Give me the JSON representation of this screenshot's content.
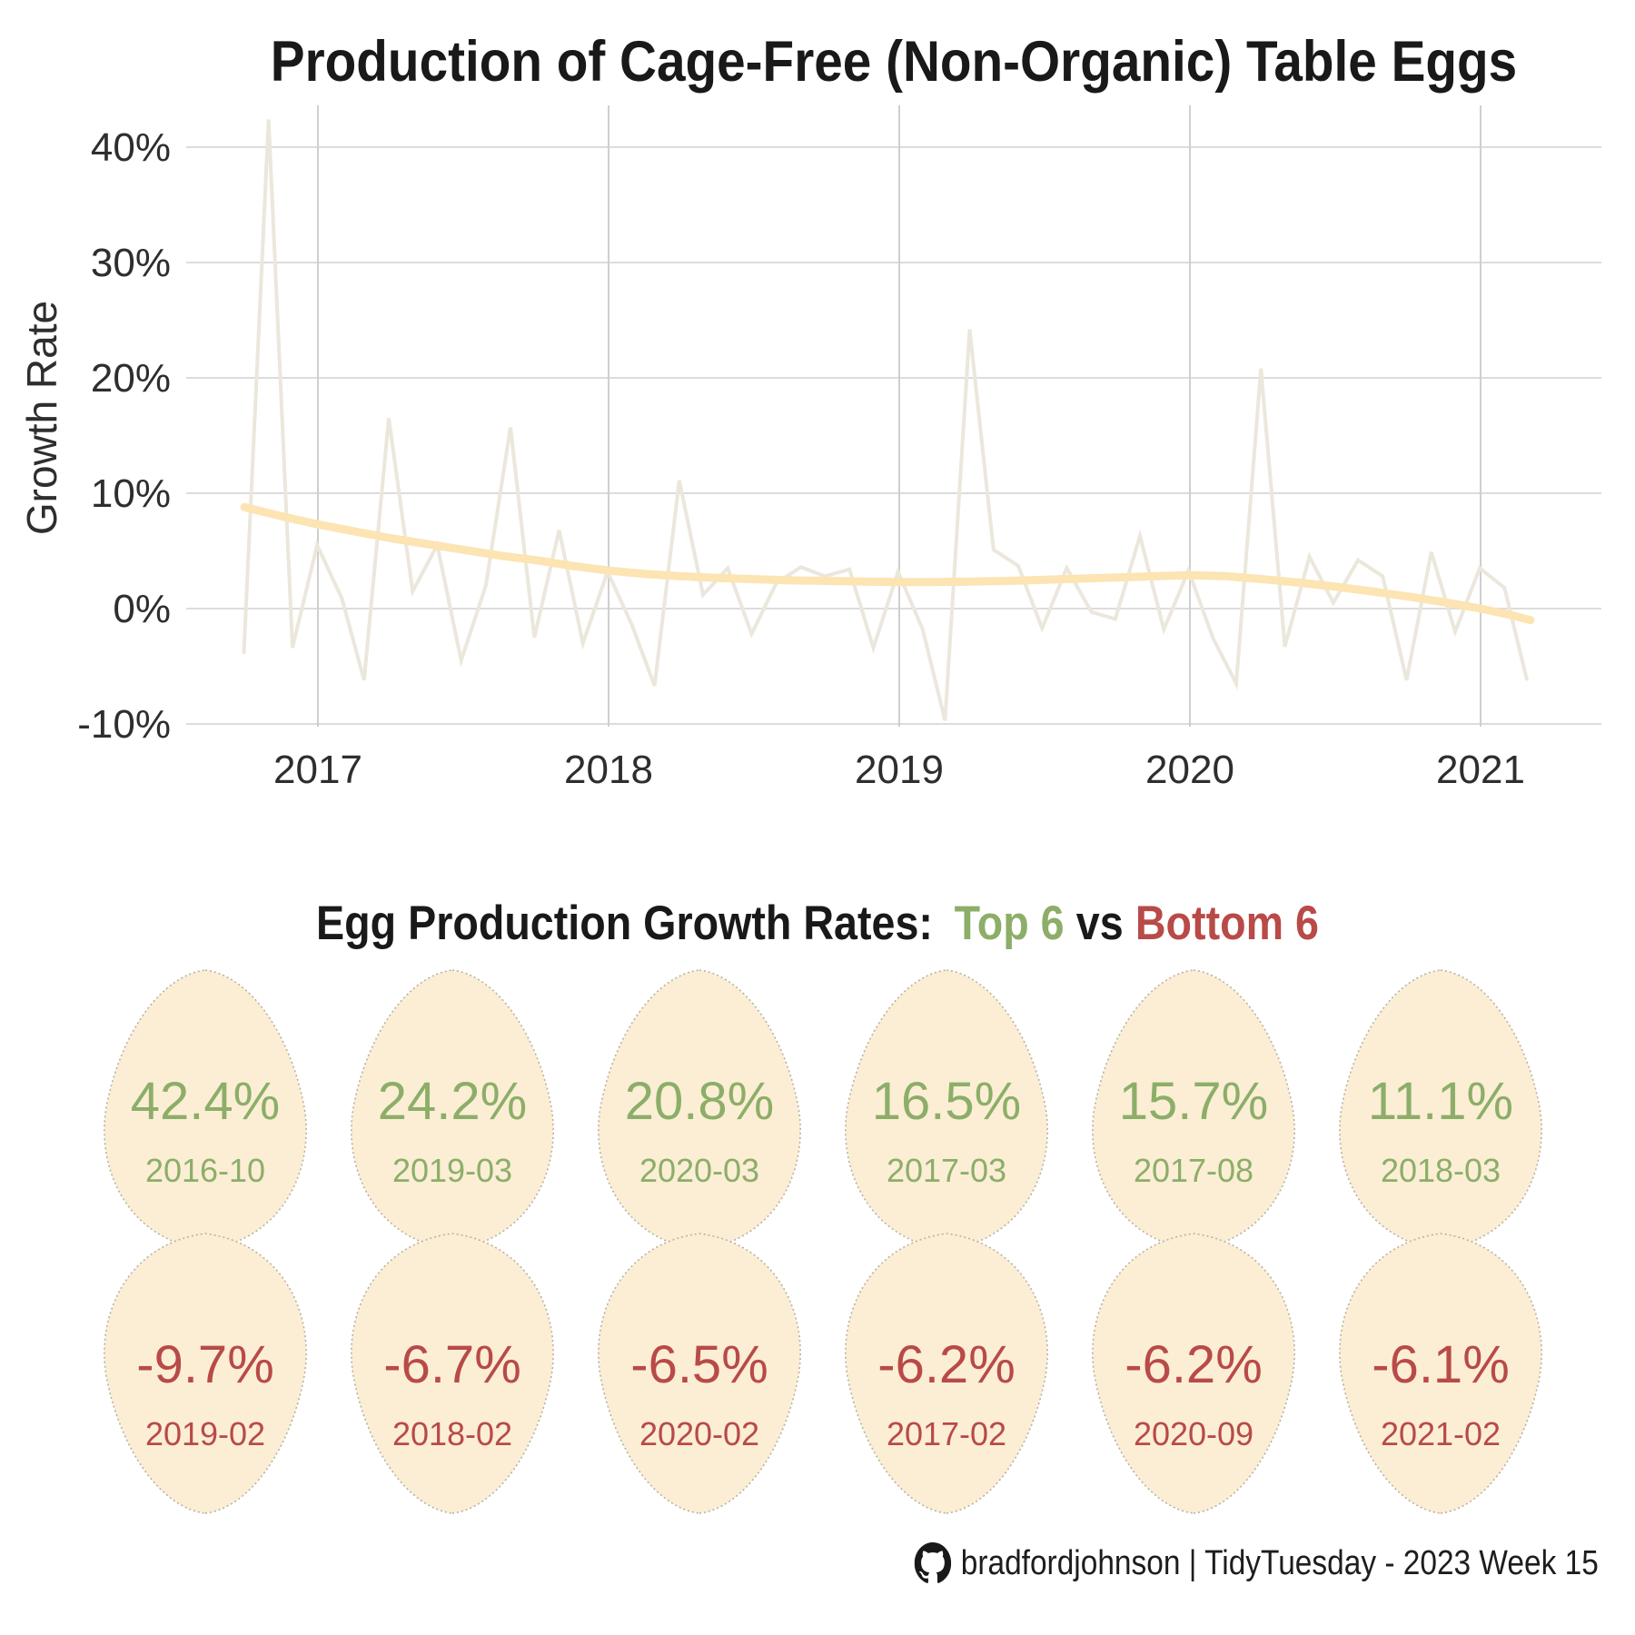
{
  "header": {
    "title": "Production of Cage-Free (Non-Organic) Table Eggs"
  },
  "chart_data": {
    "type": "line",
    "title": "Production of Cage-Free (Non-Organic) Table Eggs",
    "xlabel": "",
    "ylabel": "Growth Rate",
    "x_ticks": [
      "2017",
      "2018",
      "2019",
      "2020",
      "2021"
    ],
    "x_tick_years": [
      2017,
      2018,
      2019,
      2020,
      2021
    ],
    "y_ticks": [
      "40%",
      "30%",
      "20%",
      "10%",
      "0%",
      "-10%"
    ],
    "y_tick_values": [
      40,
      30,
      20,
      10,
      0,
      -10
    ],
    "ylim": [
      -12,
      44
    ],
    "grid": true,
    "legend_position": "none",
    "series": [
      {
        "name": "monthly_growth_rate",
        "type": "line",
        "color": "#ece7dc",
        "months": [
          "2016-09",
          "2016-10",
          "2016-11",
          "2016-12",
          "2017-01",
          "2017-02",
          "2017-03",
          "2017-04",
          "2017-05",
          "2017-06",
          "2017-07",
          "2017-08",
          "2017-09",
          "2017-10",
          "2017-11",
          "2017-12",
          "2018-01",
          "2018-02",
          "2018-03",
          "2018-04",
          "2018-05",
          "2018-06",
          "2018-07",
          "2018-08",
          "2018-09",
          "2018-10",
          "2018-11",
          "2018-12",
          "2019-01",
          "2019-02",
          "2019-03",
          "2019-04",
          "2019-05",
          "2019-06",
          "2019-07",
          "2019-08",
          "2019-09",
          "2019-10",
          "2019-11",
          "2019-12",
          "2020-01",
          "2020-02",
          "2020-03",
          "2020-04",
          "2020-05",
          "2020-06",
          "2020-07",
          "2020-08",
          "2020-09",
          "2020-10",
          "2020-11",
          "2020-12",
          "2021-01",
          "2021-02"
        ],
        "values": [
          -3.8,
          42.4,
          -3.4,
          5.5,
          0.9,
          -6.2,
          16.5,
          1.5,
          5.5,
          -4.5,
          2.0,
          15.7,
          -2.5,
          6.8,
          -3.0,
          3.2,
          -1.5,
          -6.7,
          11.1,
          1.2,
          3.5,
          -2.2,
          2.2,
          3.6,
          2.8,
          3.4,
          -3.4,
          3.2,
          -1.8,
          -9.7,
          24.2,
          5.1,
          3.7,
          -1.7,
          3.5,
          -0.3,
          -0.9,
          6.3,
          -1.8,
          3.3,
          -2.6,
          -6.5,
          20.8,
          -3.3,
          4.5,
          0.5,
          4.2,
          2.8,
          -6.2,
          4.9,
          -2.0,
          3.5,
          1.8,
          -6.1
        ]
      },
      {
        "name": "smoothed_trend",
        "type": "smooth",
        "color": "#fce4b3",
        "points": [
          [
            -0.253,
            8.8
          ],
          [
            -0.125,
            8.0
          ],
          [
            0,
            7.3
          ],
          [
            0.125,
            6.7
          ],
          [
            0.25,
            6.1
          ],
          [
            0.375,
            5.6
          ],
          [
            0.5,
            5.1
          ],
          [
            0.625,
            4.6
          ],
          [
            0.75,
            4.2
          ],
          [
            0.875,
            3.7
          ],
          [
            1.0,
            3.3
          ],
          [
            1.125,
            3.0
          ],
          [
            1.25,
            2.8
          ],
          [
            1.375,
            2.65
          ],
          [
            1.5,
            2.55
          ],
          [
            1.625,
            2.45
          ],
          [
            1.75,
            2.4
          ],
          [
            1.875,
            2.35
          ],
          [
            2.0,
            2.3
          ],
          [
            2.125,
            2.3
          ],
          [
            2.25,
            2.35
          ],
          [
            2.375,
            2.4
          ],
          [
            2.5,
            2.5
          ],
          [
            2.625,
            2.6
          ],
          [
            2.75,
            2.7
          ],
          [
            2.875,
            2.8
          ],
          [
            3.0,
            2.9
          ],
          [
            3.125,
            2.8
          ],
          [
            3.25,
            2.55
          ],
          [
            3.375,
            2.25
          ],
          [
            3.5,
            1.9
          ],
          [
            3.625,
            1.5
          ],
          [
            3.75,
            1.05
          ],
          [
            3.875,
            0.55
          ],
          [
            4.0,
            0.0
          ],
          [
            4.094,
            -0.5
          ],
          [
            4.172,
            -1.0
          ]
        ]
      }
    ]
  },
  "eggs_section": {
    "subtitle": {
      "prefix": "Egg Production Growth Rates:",
      "top_label": "Top 6",
      "vs": "vs",
      "bottom_label": "Bottom 6"
    },
    "top": [
      {
        "value": "42.4%",
        "date": "2016-10"
      },
      {
        "value": "24.2%",
        "date": "2019-03"
      },
      {
        "value": "20.8%",
        "date": "2020-03"
      },
      {
        "value": "16.5%",
        "date": "2017-03"
      },
      {
        "value": "15.7%",
        "date": "2017-08"
      },
      {
        "value": "11.1%",
        "date": "2018-03"
      }
    ],
    "bottom": [
      {
        "value": "-9.7%",
        "date": "2019-02"
      },
      {
        "value": "-6.7%",
        "date": "2018-02"
      },
      {
        "value": "-6.5%",
        "date": "2020-02"
      },
      {
        "value": "-6.2%",
        "date": "2017-02"
      },
      {
        "value": "-6.2%",
        "date": "2020-09"
      },
      {
        "value": "-6.1%",
        "date": "2021-02"
      }
    ]
  },
  "footer": {
    "credit": "bradfordjohnson | TidyTuesday - 2023 Week 15",
    "icon": "github-icon"
  },
  "colors": {
    "green": "#8cae68",
    "red": "#b84a48",
    "egg_fill": "#fbeed5",
    "egg_border": "#b7b1a4",
    "line": "#ece7dc",
    "trend": "#fce4b3",
    "grid_h": "#dcdcdc",
    "grid_v": "#cfcfcf",
    "text": "#191919",
    "axis_text": "#2e2e2e"
  }
}
